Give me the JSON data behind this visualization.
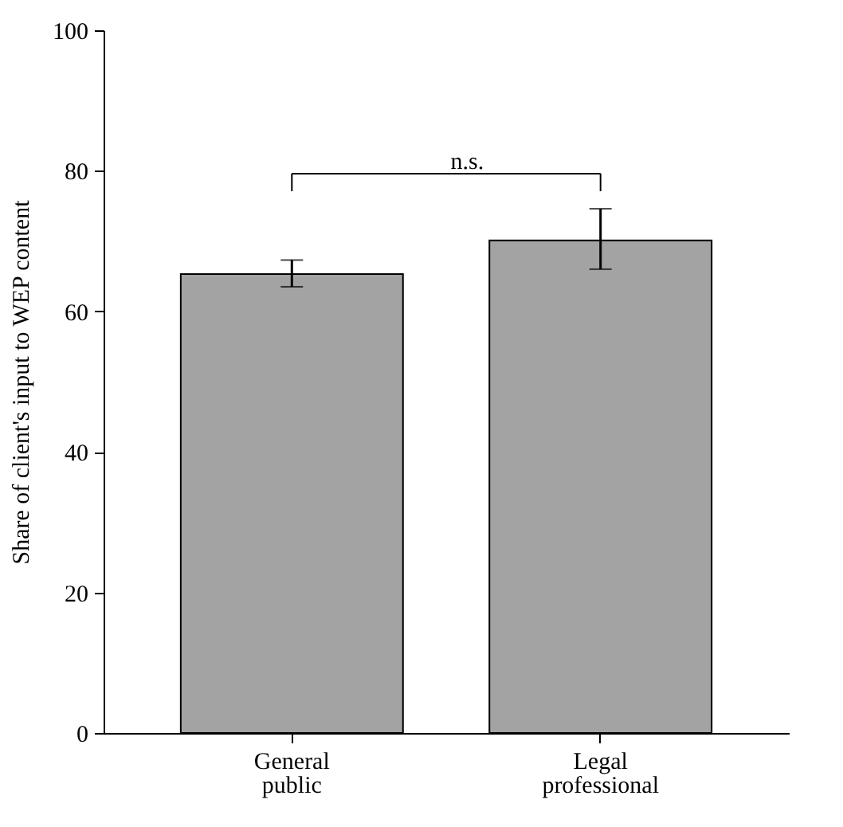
{
  "chart_data": {
    "type": "bar",
    "ylabel": "Share of client's input to WEP content",
    "categories": [
      "General public",
      "Legal professional"
    ],
    "values": [
      65.3,
      70.1
    ],
    "errors": [
      [
        63.5,
        67.3
      ],
      [
        66.0,
        74.6
      ]
    ],
    "color": "#a3a3a3",
    "ylim": [
      0,
      100
    ],
    "yticks": [
      0,
      20,
      40,
      60,
      80,
      100
    ],
    "annotations": [
      "n.s."
    ],
    "grid": false
  }
}
